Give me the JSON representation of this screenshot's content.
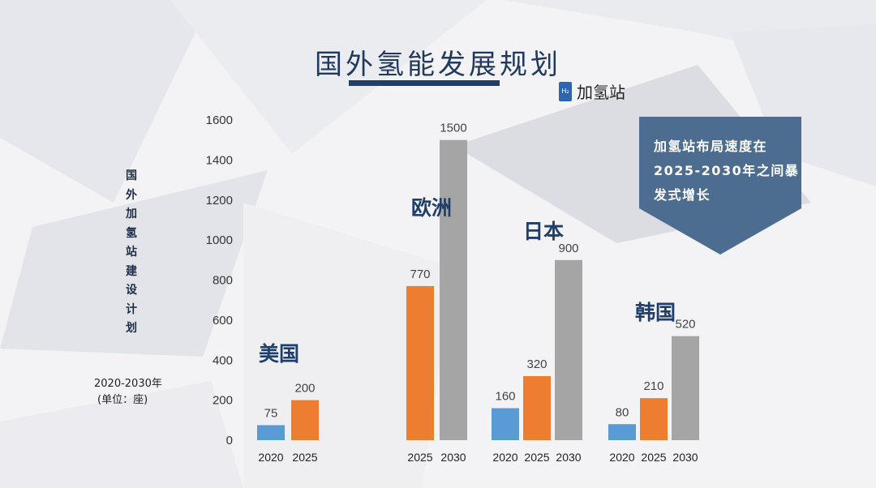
{
  "title": "国外氢能发展规划",
  "legend": {
    "icon_text": "H₂",
    "label": "加氢站"
  },
  "y_axis_vertical_label": "国外加氢站建设计划",
  "note": {
    "years": "2020-2030年",
    "unit": "(单位：座)"
  },
  "callout": {
    "text": "加氢站布局速度在2025-2030年之间暴发式增长",
    "color": "#4c6d8f"
  },
  "colors": {
    "2020": "#5b9bd5",
    "2025": "#ed7d31",
    "2030": "#a5a5a5"
  },
  "chart_data": {
    "type": "bar",
    "ylim": [
      0,
      1600
    ],
    "yticks": [
      "0",
      "200",
      "400",
      "600",
      "800",
      "1000",
      "1200",
      "1400",
      "1600"
    ],
    "groups": [
      {
        "name": "美国",
        "bars": [
          {
            "year": "2020",
            "value": 75,
            "label": "75"
          },
          {
            "year": "2025",
            "value": 200,
            "label": "200"
          }
        ]
      },
      {
        "name": "欧洲",
        "bars": [
          {
            "year": "2025",
            "value": 770,
            "label": "770"
          },
          {
            "year": "2030",
            "value": 1500,
            "label": "1500"
          }
        ]
      },
      {
        "name": "日本",
        "bars": [
          {
            "year": "2020",
            "value": 160,
            "label": "160"
          },
          {
            "year": "2025",
            "value": 320,
            "label": "320"
          },
          {
            "year": "2030",
            "value": 900,
            "label": "900"
          }
        ]
      },
      {
        "name": "韩国",
        "bars": [
          {
            "year": "2020",
            "value": 80,
            "label": "80"
          },
          {
            "year": "2025",
            "value": 210,
            "label": "210"
          },
          {
            "year": "2030",
            "value": 520,
            "label": "520"
          }
        ]
      }
    ]
  }
}
